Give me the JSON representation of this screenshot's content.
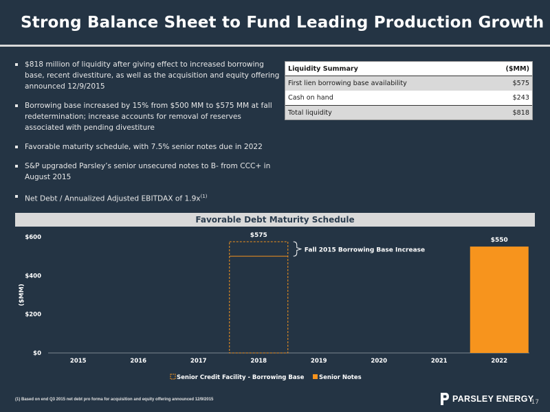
{
  "title": "Strong Balance Sheet to Fund Leading Production Growth",
  "bullets": [
    {
      "text": "$818 million of liquidity after giving effect to increased borrowing base, recent divestiture, as well as the acquisition and equity offering announced 12/9/2015",
      "sup": ""
    },
    {
      "text": "Borrowing base increased by 15% from $500 MM to $575 MM at fall redetermination; increase accounts for removal of reserves associated with pending divestiture",
      "sup": ""
    },
    {
      "text": "Favorable maturity schedule, with 7.5% senior notes due in 2022",
      "sup": ""
    },
    {
      "text": "S&P upgraded Parsley’s senior unsecured notes to B- from CCC+ in August 2015",
      "sup": ""
    },
    {
      "text": "Net Debt / Annualized Adjusted EBITDAX of 1.9x",
      "sup": "(1)"
    }
  ],
  "liquidity": {
    "header": {
      "label": "Liquidity Summary",
      "unit": "($MM)"
    },
    "rows": [
      {
        "label": "First lien borrowing base availability",
        "value": "$575"
      },
      {
        "label": "Cash on hand",
        "value": "$243"
      },
      {
        "label": "Total liquidity",
        "value": "$818"
      }
    ]
  },
  "chart_data": {
    "type": "bar",
    "title": "Favorable Debt Maturity Schedule",
    "ylabel": "($MM)",
    "xlabel": "",
    "categories": [
      "2015",
      "2016",
      "2017",
      "2018",
      "2019",
      "2020",
      "2021",
      "2022"
    ],
    "ylim": [
      0,
      600
    ],
    "yticks": [
      0,
      200,
      400,
      600
    ],
    "ytick_labels": [
      "$0",
      "$200",
      "$400",
      "$600"
    ],
    "series": [
      {
        "name": "Senior Credit Facility - Borrowing Base",
        "values": [
          0,
          0,
          0,
          575,
          0,
          0,
          0,
          0
        ],
        "color": "#f7941d",
        "style": "dashed-outline"
      },
      {
        "name": "Senior Notes",
        "values": [
          0,
          0,
          0,
          0,
          0,
          0,
          0,
          550
        ],
        "color": "#f7941d",
        "style": "filled"
      }
    ],
    "data_labels": [
      {
        "category": "2018",
        "text": "$575"
      },
      {
        "category": "2022",
        "text": "$550"
      }
    ],
    "annotation": {
      "text": "Fall 2015 Borrowing Base Increase",
      "category": "2018",
      "from": 500,
      "to": 575
    },
    "legend_position": "bottom",
    "colors": {
      "bar": "#f7941d",
      "text": "#ffffff"
    }
  },
  "footnote": "(1) Based on end Q3 2015 net debt pro forma for acquisition and equity offering announced 12/9/2015",
  "logo": {
    "text": "PARSLEY ENERGY"
  },
  "page_number": "17"
}
